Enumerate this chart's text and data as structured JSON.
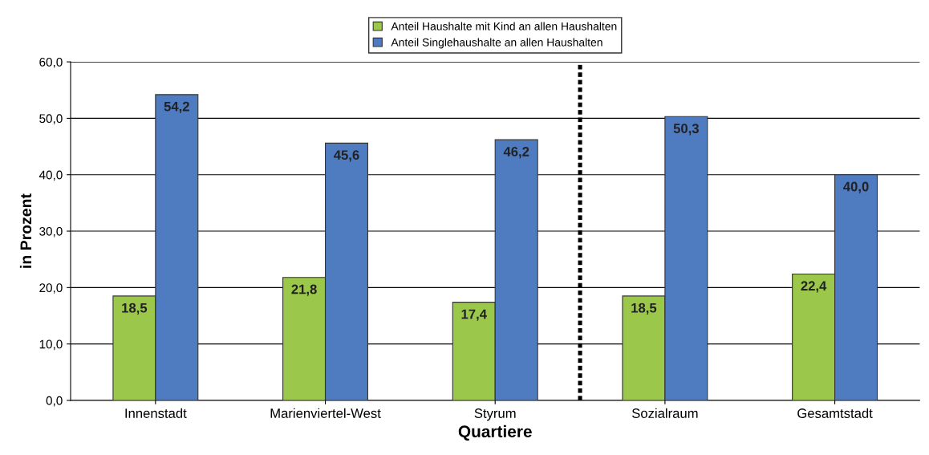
{
  "chart_data": {
    "type": "bar",
    "xlabel": "Quartiere",
    "ylabel": "in Prozent",
    "categories": [
      "Innenstadt",
      "Marienviertel-West",
      "Styrum",
      "Sozialraum",
      "Gesamtstadt"
    ],
    "series": [
      {
        "name": "Anteil Haushalte mit Kind an allen Haushalten",
        "color": "#9bc84a",
        "values": [
          18.5,
          21.8,
          17.4,
          18.5,
          22.4
        ],
        "value_labels": [
          "18,5",
          "21,8",
          "17,4",
          "18,5",
          "22,4"
        ]
      },
      {
        "name": "Anteil Singlehaushalte an allen Haushalten",
        "color": "#4f7bc0",
        "values": [
          54.2,
          45.6,
          46.2,
          50.3,
          40.0
        ],
        "value_labels": [
          "54,2",
          "45,6",
          "46,2",
          "50,3",
          "40,0"
        ]
      }
    ],
    "ylim": [
      0,
      60
    ],
    "yticks": [
      {
        "value": 0,
        "label": "0,0"
      },
      {
        "value": 10,
        "label": "10,0"
      },
      {
        "value": 20,
        "label": "20,0"
      },
      {
        "value": 30,
        "label": "30,0"
      },
      {
        "value": 40,
        "label": "40,0"
      },
      {
        "value": 50,
        "label": "50,0"
      },
      {
        "value": 60,
        "label": "60,0"
      }
    ],
    "grid": "y",
    "legend": "top"
  }
}
